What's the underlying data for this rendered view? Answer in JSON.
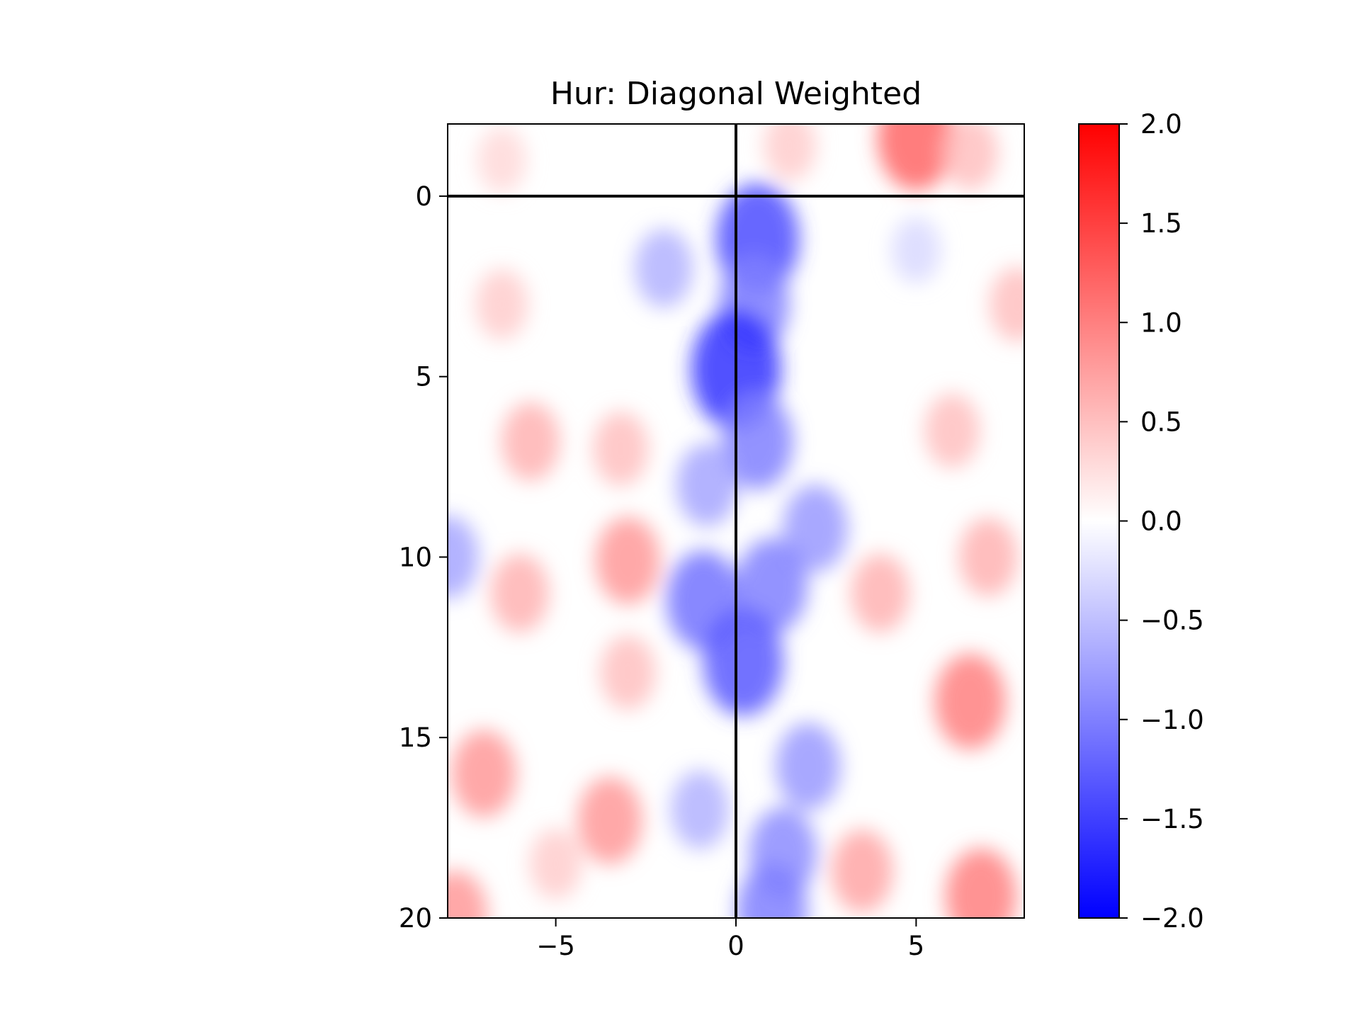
{
  "chart_data": {
    "type": "heatmap",
    "title": "Hur: Diagonal Weighted",
    "xlabel": "",
    "ylabel": "",
    "xlim": [
      -8,
      8
    ],
    "ylim": [
      20,
      -2
    ],
    "y_inverted": true,
    "xticks": [
      -5,
      0,
      5
    ],
    "xtick_labels": [
      "−5",
      "0",
      "5"
    ],
    "yticks": [
      0,
      5,
      10,
      15,
      20
    ],
    "ytick_labels": [
      "0",
      "5",
      "10",
      "15",
      "20"
    ],
    "reference_lines": {
      "vertical_x": 0,
      "horizontal_y": 0,
      "color": "#000000"
    },
    "colormap": "bwr",
    "colormap_stops": [
      "#0000ff",
      "#ffffff",
      "#ff0000"
    ],
    "colorbar": {
      "range": [
        -2.0,
        2.0
      ],
      "ticks": [
        2.0,
        1.5,
        1.0,
        0.5,
        0.0,
        -0.5,
        -1.0,
        -1.5,
        -2.0
      ],
      "tick_labels": [
        "2.0",
        "1.5",
        "1.0",
        "0.5",
        "0.0",
        "−0.5",
        "−1.0",
        "−1.5",
        "−2.0"
      ]
    },
    "features": [
      {
        "x": 0.6,
        "y": 1.2,
        "value": -1.4
      },
      {
        "x": 0.5,
        "y": 3.0,
        "value": -1.0
      },
      {
        "x": 0.0,
        "y": 4.8,
        "value": -1.6
      },
      {
        "x": 0.6,
        "y": 6.8,
        "value": -1.0
      },
      {
        "x": -0.8,
        "y": 8.0,
        "value": -0.7
      },
      {
        "x": 2.2,
        "y": 9.2,
        "value": -0.8
      },
      {
        "x": -0.9,
        "y": 11.2,
        "value": -1.1
      },
      {
        "x": 1.0,
        "y": 10.8,
        "value": -1.0
      },
      {
        "x": 0.2,
        "y": 12.9,
        "value": -1.3
      },
      {
        "x": -2.0,
        "y": 2.0,
        "value": -0.6
      },
      {
        "x": 2.0,
        "y": 15.8,
        "value": -0.8
      },
      {
        "x": 1.3,
        "y": 18.2,
        "value": -0.9
      },
      {
        "x": 1.0,
        "y": 19.8,
        "value": -1.0
      },
      {
        "x": -1.0,
        "y": 17.0,
        "value": -0.6
      },
      {
        "x": -8.0,
        "y": 10.0,
        "value": -0.7
      },
      {
        "x": -3.0,
        "y": 10.1,
        "value": 0.8
      },
      {
        "x": -6.0,
        "y": 11.0,
        "value": 0.6
      },
      {
        "x": -5.7,
        "y": 6.8,
        "value": 0.6
      },
      {
        "x": -6.5,
        "y": 3.0,
        "value": 0.4
      },
      {
        "x": -3.2,
        "y": 7.0,
        "value": 0.5
      },
      {
        "x": -3.0,
        "y": 13.2,
        "value": 0.5
      },
      {
        "x": -7.0,
        "y": 16.0,
        "value": 0.8
      },
      {
        "x": -3.5,
        "y": 17.3,
        "value": 0.8
      },
      {
        "x": -5.0,
        "y": 18.5,
        "value": 0.4
      },
      {
        "x": -7.8,
        "y": 19.9,
        "value": 0.8
      },
      {
        "x": 5.0,
        "y": -1.6,
        "value": 1.2
      },
      {
        "x": 1.5,
        "y": -1.4,
        "value": 0.4
      },
      {
        "x": 6.5,
        "y": -1.2,
        "value": 0.5
      },
      {
        "x": -6.5,
        "y": -1.0,
        "value": 0.3
      },
      {
        "x": 7.0,
        "y": 10.0,
        "value": 0.6
      },
      {
        "x": 6.5,
        "y": 14.0,
        "value": 1.0
      },
      {
        "x": 4.0,
        "y": 11.0,
        "value": 0.6
      },
      {
        "x": 6.8,
        "y": 19.4,
        "value": 1.0
      },
      {
        "x": 3.5,
        "y": 18.7,
        "value": 0.7
      },
      {
        "x": 6.0,
        "y": 6.5,
        "value": 0.5
      },
      {
        "x": 7.8,
        "y": 3.0,
        "value": 0.5
      },
      {
        "x": 5.0,
        "y": 1.5,
        "value": -0.3
      }
    ]
  }
}
